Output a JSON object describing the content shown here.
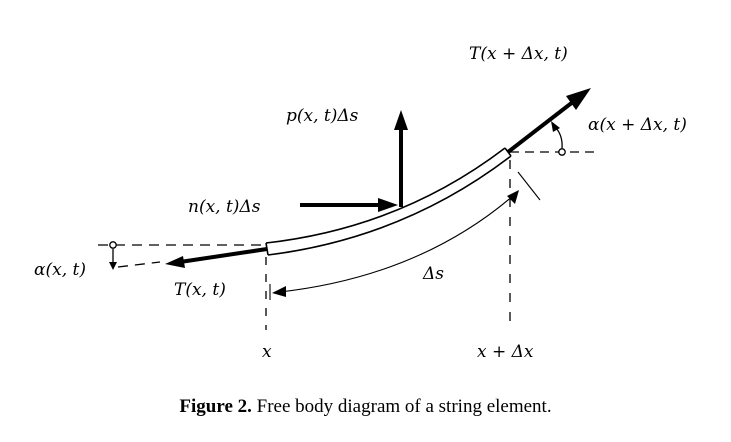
{
  "labels": {
    "tension_right": "T(x + Δx, t)",
    "pressure_force": "p(x, t)Δs",
    "angle_right": "α(x + Δx, t)",
    "normal_force": "n(x, t)Δs",
    "angle_left": "α(x, t)",
    "tension_left": "T(x, t)",
    "arc_length": "Δs",
    "x_left": "x",
    "x_right": "x + Δx"
  },
  "caption": {
    "number": "Figure 2.",
    "text": " Free body diagram of a string element."
  }
}
